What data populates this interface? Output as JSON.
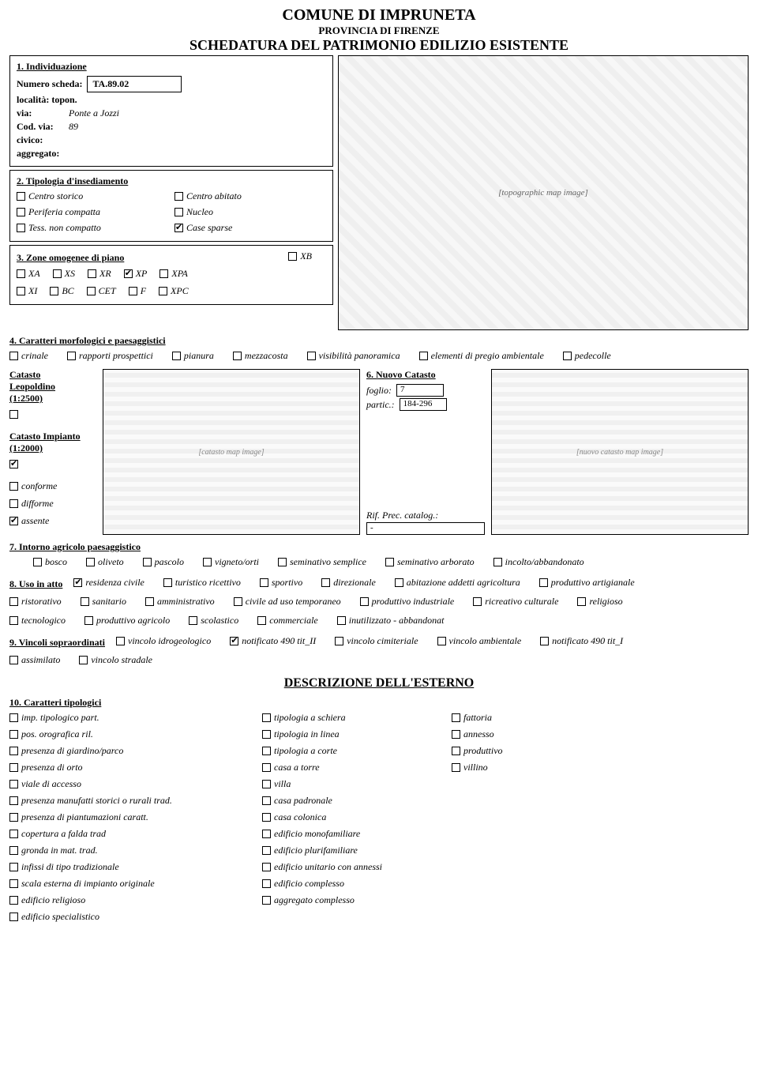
{
  "header": {
    "line1": "COMUNE DI IMPRUNETA",
    "line2": "PROVINCIA DI FIRENZE",
    "line3": "SCHEDATURA DEL PATRIMONIO EDILIZIO ESISTENTE"
  },
  "sec1": {
    "title": "1. Individuazione",
    "numero_scheda_label": "Numero scheda:",
    "numero_scheda": "TA.89.02",
    "localita_topon_label": "località: topon.",
    "localita_topon": "",
    "via_label": "via:",
    "via": "Ponte a Jozzi",
    "cod_via_label": "Cod. via:",
    "cod_via": "89",
    "civico_label": "civico:",
    "civico": "",
    "aggregato_label": "aggregato:",
    "aggregato": ""
  },
  "sec2": {
    "title": "2. Tipologia d'insediamento",
    "items": [
      {
        "label": "Centro storico",
        "checked": false
      },
      {
        "label": "Centro abitato",
        "checked": false
      },
      {
        "label": "Periferia compatta",
        "checked": false
      },
      {
        "label": "Nucleo",
        "checked": false
      },
      {
        "label": "Tess. non compatto",
        "checked": false
      },
      {
        "label": "Case sparse",
        "checked": true
      }
    ]
  },
  "sec3": {
    "title": "3. Zone omogenee di piano",
    "row1": [
      {
        "label": "XB",
        "checked": false
      }
    ],
    "row2": [
      {
        "label": "XA",
        "checked": false
      },
      {
        "label": "XS",
        "checked": false
      },
      {
        "label": "XR",
        "checked": false
      },
      {
        "label": "XP",
        "checked": true
      },
      {
        "label": "XPA",
        "checked": false
      }
    ],
    "row3": [
      {
        "label": "XI",
        "checked": false
      },
      {
        "label": "BC",
        "checked": false
      },
      {
        "label": "CET",
        "checked": false
      },
      {
        "label": "F",
        "checked": false
      },
      {
        "label": "XPC",
        "checked": false
      }
    ]
  },
  "sec4": {
    "title": "4. Caratteri morfologici e paesaggistici",
    "items": [
      {
        "label": "crinale",
        "checked": false
      },
      {
        "label": "rapporti prospettici",
        "checked": false
      },
      {
        "label": "pianura",
        "checked": false
      },
      {
        "label": "mezzacosta",
        "checked": false
      },
      {
        "label": "visibilità panoramica",
        "checked": false
      },
      {
        "label": "elementi di pregio ambientale",
        "checked": false
      },
      {
        "label": "pedecolle",
        "checked": false
      }
    ]
  },
  "catasto": {
    "leopoldino_label": "Catasto Leopoldino (1:2500)",
    "leopoldino_checked": false,
    "impianto_label": "Catasto Impianto (1:2000)",
    "impianto_checked": true,
    "conforme": {
      "label": "conforme",
      "checked": false
    },
    "difforme": {
      "label": "difforme",
      "checked": false
    },
    "assente": {
      "label": "assente",
      "checked": true
    }
  },
  "sec6": {
    "title": "6. Nuovo Catasto",
    "foglio_label": "foglio:",
    "foglio": "7",
    "partic_label": "partic.:",
    "partic": "184-296",
    "rif_label": "Rif. Prec. catalog.:",
    "rif": "-"
  },
  "sec7": {
    "title": "7. Intorno agricolo paesaggistico",
    "items": [
      {
        "label": "bosco",
        "checked": false
      },
      {
        "label": "oliveto",
        "checked": false
      },
      {
        "label": "pascolo",
        "checked": false
      },
      {
        "label": "vigneto/orti",
        "checked": false
      },
      {
        "label": "seminativo semplice",
        "checked": false
      },
      {
        "label": "seminativo arborato",
        "checked": false
      },
      {
        "label": "incolto/abbandonato",
        "checked": false
      }
    ]
  },
  "sec8": {
    "title": "8. Uso in atto",
    "row1": [
      {
        "label": "residenza civile",
        "checked": true
      },
      {
        "label": "turistico ricettivo",
        "checked": false
      },
      {
        "label": "sportivo",
        "checked": false
      },
      {
        "label": "direzionale",
        "checked": false
      },
      {
        "label": "abitazione addetti agricoltura",
        "checked": false
      },
      {
        "label": "produttivo artigianale",
        "checked": false
      }
    ],
    "row2": [
      {
        "label": "ristorativo",
        "checked": false
      },
      {
        "label": "sanitario",
        "checked": false
      },
      {
        "label": "amministrativo",
        "checked": false
      },
      {
        "label": "civile ad uso temporaneo",
        "checked": false
      },
      {
        "label": "produttivo industriale",
        "checked": false
      },
      {
        "label": "ricreativo culturale",
        "checked": false
      },
      {
        "label": "religioso",
        "checked": false
      }
    ],
    "row3": [
      {
        "label": "tecnologico",
        "checked": false
      },
      {
        "label": "produttivo agricolo",
        "checked": false
      },
      {
        "label": "scolastico",
        "checked": false
      },
      {
        "label": "commerciale",
        "checked": false
      },
      {
        "label": "inutilizzato - abbandonat",
        "checked": false
      }
    ]
  },
  "sec9": {
    "title": "9. Vincoli sopraordinati",
    "row1": [
      {
        "label": "vincolo idrogeologico",
        "checked": false
      },
      {
        "label": "notificato 490 tit_II",
        "checked": true
      },
      {
        "label": "vincolo cimiteriale",
        "checked": false
      },
      {
        "label": "vincolo ambientale",
        "checked": false
      },
      {
        "label": "notificato 490 tit_I",
        "checked": false
      }
    ],
    "row2": [
      {
        "label": "assimilato",
        "checked": false
      },
      {
        "label": "vincolo stradale",
        "checked": false
      }
    ]
  },
  "desc_title": "DESCRIZIONE DELL'ESTERNO",
  "sec10": {
    "title": "10. Caratteri tipologici",
    "col1": [
      {
        "label": "imp. tipologico part.",
        "checked": false
      },
      {
        "label": "pos. orografica ril.",
        "checked": false
      },
      {
        "label": "presenza di giardino/parco",
        "checked": false
      },
      {
        "label": "presenza di orto",
        "checked": false
      },
      {
        "label": "viale di accesso",
        "checked": false
      },
      {
        "label": "presenza manufatti storici o rurali trad.",
        "checked": false
      },
      {
        "label": "presenza di piantumazioni caratt.",
        "checked": false
      },
      {
        "label": "copertura a falda trad",
        "checked": false
      },
      {
        "label": "gronda in mat. trad.",
        "checked": false
      },
      {
        "label": "infissi di tipo tradizionale",
        "checked": false
      },
      {
        "label": "scala esterna di impianto originale",
        "checked": false
      },
      {
        "label": "edificio religioso",
        "checked": false
      },
      {
        "label": "edificio specialistico",
        "checked": false
      }
    ],
    "col2": [
      {
        "label": "tipologia a schiera",
        "checked": false
      },
      {
        "label": "tipologia in linea",
        "checked": false
      },
      {
        "label": "tipologia a corte",
        "checked": false
      },
      {
        "label": "casa a torre",
        "checked": false
      },
      {
        "label": "villa",
        "checked": false
      },
      {
        "label": "casa padronale",
        "checked": false
      },
      {
        "label": "casa colonica",
        "checked": false
      },
      {
        "label": "edificio monofamiliare",
        "checked": false
      },
      {
        "label": "edificio plurifamiliare",
        "checked": false
      },
      {
        "label": "edificio unitario con annessi",
        "checked": false
      },
      {
        "label": "edificio complesso",
        "checked": false
      },
      {
        "label": "aggregato complesso",
        "checked": false
      }
    ],
    "col3": [
      {
        "label": "fattoria",
        "checked": false
      },
      {
        "label": "annesso",
        "checked": false
      },
      {
        "label": "produttivo",
        "checked": false
      },
      {
        "label": "villino",
        "checked": false
      }
    ]
  },
  "map_main_placeholder": "[topographic map image]",
  "map_catasto_placeholder": "[catasto map image]",
  "map_nuovo_placeholder": "[nuovo catasto map image]"
}
